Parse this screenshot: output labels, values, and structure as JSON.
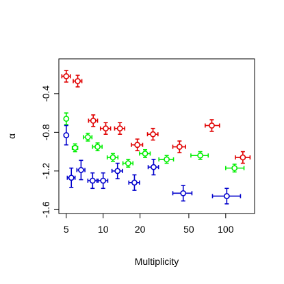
{
  "chart_data": {
    "type": "scatter",
    "title": "",
    "xlabel": "Multiplicity",
    "ylabel": "α",
    "x_scale": "log",
    "xlim": [
      4.35,
      172
    ],
    "ylim": [
      -1.64,
      -0.04
    ],
    "x_ticks": [
      5,
      10,
      20,
      50,
      100
    ],
    "x_tick_labels": [
      "5",
      "10",
      "20",
      "50",
      "100"
    ],
    "y_ticks": [
      -1.6,
      -1.2,
      -0.8,
      -0.4
    ],
    "y_tick_labels": [
      "-1.6",
      "-1.2",
      "-0.8",
      "-0.4"
    ],
    "grid": false,
    "legend": "none",
    "series": [
      {
        "color": "#e00000",
        "points": [
          {
            "x": 5.0,
            "y": -0.22,
            "xerr": [
              0.4,
              0.4
            ],
            "yerr": 0.06
          },
          {
            "x": 6.2,
            "y": -0.27,
            "xerr": [
              0.5,
              0.5
            ],
            "yerr": 0.06
          },
          {
            "x": 8.3,
            "y": -0.68,
            "xerr": [
              0.7,
              0.7
            ],
            "yerr": 0.06
          },
          {
            "x": 10.5,
            "y": -0.76,
            "xerr": [
              1.0,
              1.0
            ],
            "yerr": 0.06
          },
          {
            "x": 13.7,
            "y": -0.76,
            "xerr": [
              1.3,
              1.3
            ],
            "yerr": 0.06
          },
          {
            "x": 19.0,
            "y": -0.93,
            "xerr": [
              2.0,
              2.0
            ],
            "yerr": 0.06
          },
          {
            "x": 25.5,
            "y": -0.82,
            "xerr": [
              2.5,
              2.5
            ],
            "yerr": 0.06
          },
          {
            "x": 42.0,
            "y": -0.95,
            "xerr": [
              5.0,
              5.0
            ],
            "yerr": 0.06
          },
          {
            "x": 77.0,
            "y": -0.73,
            "xerr": [
              9.0,
              12.0
            ],
            "yerr": 0.06
          },
          {
            "x": 138.0,
            "y": -1.06,
            "xerr": [
              18.0,
              20.0
            ],
            "yerr": 0.06
          }
        ]
      },
      {
        "color": "#00ee00",
        "points": [
          {
            "x": 5.0,
            "y": -0.66,
            "xerr": [
              0.0,
              0.0
            ],
            "yerr": 0.06
          },
          {
            "x": 5.9,
            "y": -0.96,
            "xerr": [
              0.3,
              0.3
            ],
            "yerr": 0.04
          },
          {
            "x": 7.5,
            "y": -0.85,
            "xerr": [
              0.6,
              0.6
            ],
            "yerr": 0.04
          },
          {
            "x": 9.0,
            "y": -0.95,
            "xerr": [
              0.8,
              0.8
            ],
            "yerr": 0.04
          },
          {
            "x": 12.0,
            "y": -1.06,
            "xerr": [
              1.2,
              1.2
            ],
            "yerr": 0.04
          },
          {
            "x": 16.0,
            "y": -1.12,
            "xerr": [
              1.5,
              1.5
            ],
            "yerr": 0.04
          },
          {
            "x": 22.0,
            "y": -1.02,
            "xerr": [
              2.2,
              2.2
            ],
            "yerr": 0.04
          },
          {
            "x": 33.0,
            "y": -1.08,
            "xerr": [
              4.5,
              4.5
            ],
            "yerr": 0.04
          },
          {
            "x": 62.0,
            "y": -1.04,
            "xerr": [
              10.0,
              10.0
            ],
            "yerr": 0.04
          },
          {
            "x": 118.0,
            "y": -1.17,
            "xerr": [
              18.0,
              23.0
            ],
            "yerr": 0.04
          }
        ]
      },
      {
        "color": "#0000cc",
        "points": [
          {
            "x": 5.0,
            "y": -0.83,
            "xerr": [
              0.0,
              0.0
            ],
            "yerr": 0.1
          },
          {
            "x": 5.5,
            "y": -1.27,
            "xerr": [
              0.4,
              0.4
            ],
            "yerr": 0.1
          },
          {
            "x": 6.6,
            "y": -1.19,
            "xerr": [
              0.5,
              0.5
            ],
            "yerr": 0.1
          },
          {
            "x": 8.2,
            "y": -1.3,
            "xerr": [
              0.7,
              0.7
            ],
            "yerr": 0.08
          },
          {
            "x": 10.0,
            "y": -1.3,
            "xerr": [
              0.9,
              0.9
            ],
            "yerr": 0.08
          },
          {
            "x": 13.1,
            "y": -1.2,
            "xerr": [
              1.3,
              1.3
            ],
            "yerr": 0.08
          },
          {
            "x": 18.0,
            "y": -1.32,
            "xerr": [
              1.8,
              1.8
            ],
            "yerr": 0.08
          },
          {
            "x": 25.8,
            "y": -1.16,
            "xerr": [
              2.5,
              2.5
            ],
            "yerr": 0.08
          },
          {
            "x": 45.0,
            "y": -1.43,
            "xerr": [
              8.0,
              8.0
            ],
            "yerr": 0.08
          },
          {
            "x": 102.0,
            "y": -1.46,
            "xerr": [
              24.0,
              30.0
            ],
            "yerr": 0.08
          }
        ]
      }
    ]
  }
}
